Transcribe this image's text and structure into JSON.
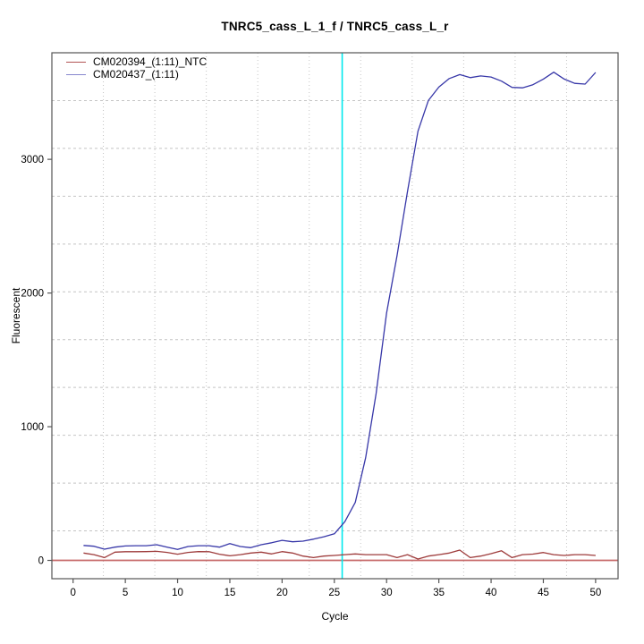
{
  "title": "TNRC5_cass_L_1_f / TNRC5_cass_L_r",
  "axes": {
    "x_label": "Cycle",
    "y_label": "Fluorescent",
    "x_ticks": [
      0,
      5,
      10,
      15,
      20,
      25,
      30,
      35,
      40,
      45,
      50
    ],
    "y_ticks": [
      0,
      1000,
      2000,
      3000
    ]
  },
  "legend": {
    "items": [
      {
        "label": "CM020394_(1:11)_NTC",
        "swatch_color": "#B25454"
      },
      {
        "label": "CM020437_(1:11)",
        "swatch_color": "#8787CE"
      }
    ]
  },
  "colors": {
    "background": "#FFFFFF",
    "grid": "#C4C4C4",
    "axis": "#555555",
    "text": "#000000",
    "threshold_line": "#00E8EE",
    "zero_line": "#C76A6A",
    "series_ntc": "#9E3B3B",
    "series_sample": "#3737A8"
  },
  "chart_data": {
    "type": "line",
    "title": "TNRC5_cass_L_1_f / TNRC5_cass_L_r",
    "xlabel": "Cycle",
    "ylabel": "Fluorescent",
    "xlim": [
      -2.03,
      52.15
    ],
    "ylim": [
      -137,
      3797
    ],
    "x_tick_values": [
      0,
      5,
      10,
      15,
      20,
      25,
      30,
      35,
      40,
      45,
      50
    ],
    "y_tick_values": [
      0,
      1000,
      2000,
      3000
    ],
    "grid": {
      "nx": 11,
      "ny": 11,
      "style": "dotted",
      "on": true
    },
    "legend_position": "top-left",
    "x": [
      1,
      2,
      3,
      4,
      5,
      6,
      7,
      8,
      9,
      10,
      11,
      12,
      13,
      14,
      15,
      16,
      17,
      18,
      19,
      20,
      21,
      22,
      23,
      24,
      25,
      26,
      27,
      28,
      29,
      30,
      31,
      32,
      33,
      34,
      35,
      36,
      37,
      38,
      39,
      40,
      41,
      42,
      43,
      44,
      45,
      46,
      47,
      48,
      49,
      50
    ],
    "series": [
      {
        "name": "CM020394_(1:11)_NTC",
        "color": "#9E3B3B",
        "values": [
          55,
          43,
          21,
          62,
          65,
          65,
          66,
          68,
          60,
          46,
          60,
          66,
          65,
          46,
          34,
          43,
          55,
          62,
          48,
          66,
          55,
          32,
          21,
          32,
          37,
          43,
          48,
          43,
          43,
          43,
          21,
          43,
          10,
          32,
          43,
          55,
          77,
          21,
          32,
          50,
          72,
          21,
          43,
          47,
          59,
          43,
          37,
          43,
          43,
          37
        ]
      },
      {
        "name": "CM020437_(1:11)",
        "color": "#3737A8",
        "values": [
          112,
          106,
          84,
          99,
          108,
          110,
          110,
          117,
          99,
          82,
          104,
          110,
          110,
          99,
          126,
          104,
          95,
          117,
          132,
          150,
          139,
          144,
          159,
          177,
          199,
          289,
          434,
          768,
          1248,
          1850,
          2280,
          2760,
          3210,
          3440,
          3540,
          3604,
          3634,
          3611,
          3624,
          3616,
          3585,
          3538,
          3535,
          3558,
          3600,
          3652,
          3600,
          3568,
          3563,
          3650
        ]
      }
    ],
    "threshold_cycle_line": {
      "x": 25.75,
      "color": "#00E8EE"
    },
    "baseline_line": {
      "y": 0,
      "color": "#C76A6A"
    }
  }
}
